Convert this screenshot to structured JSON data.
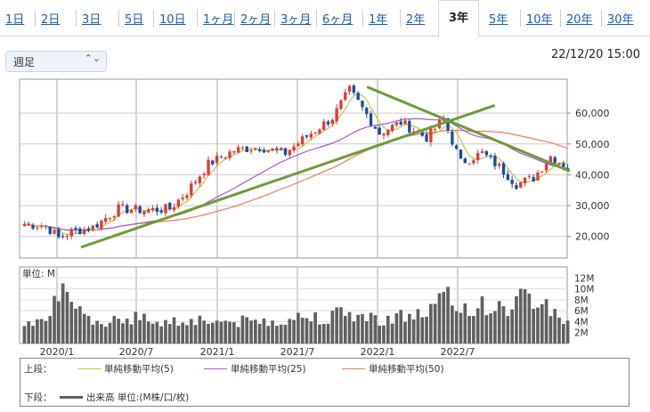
{
  "tabs": [
    "1日",
    "2日",
    "3日",
    "5日",
    "10日",
    "1ヶ月",
    "2ヶ月",
    "3ヶ月",
    "6ヶ月",
    "1年",
    "2年",
    "3年",
    "5年",
    "10年",
    "20年",
    "30年"
  ],
  "active_tab": "3年",
  "period_select": {
    "value": "週足"
  },
  "timestamp": "22/12/20 15:00",
  "colors": {
    "up": "#e23a3a",
    "down": "#1d4aa8",
    "ma5": "#b8cc3c",
    "ma25": "#a65ad6",
    "ma50": "#ee7a5e",
    "trend": "#6f9a3a",
    "volume": "#606060"
  },
  "chart_data": {
    "type": "candlestick",
    "x_ticks": [
      "2020/1",
      "2020/7",
      "2021/1",
      "2021/7",
      "2022/1",
      "2022/7"
    ],
    "y_ticks": [
      "20,000",
      "30,000",
      "40,000",
      "50,000",
      "60,000"
    ],
    "ylim": [
      13000,
      71000
    ],
    "volume_unit_label": "単位: M",
    "volume_ticks": [
      "2M",
      "4M",
      "6M",
      "8M",
      "10M",
      "12M"
    ],
    "volume_ylim": [
      0,
      14
    ],
    "anchors": [
      [
        0,
        24000
      ],
      [
        5,
        23500
      ],
      [
        8,
        19500
      ],
      [
        11,
        21500
      ],
      [
        16,
        23000
      ],
      [
        22,
        29000
      ],
      [
        28,
        28500
      ],
      [
        34,
        29000
      ],
      [
        38,
        34500
      ],
      [
        43,
        43500
      ],
      [
        49,
        48000
      ],
      [
        55,
        49000
      ],
      [
        61,
        47000
      ],
      [
        66,
        52500
      ],
      [
        72,
        58500
      ],
      [
        76,
        67500
      ],
      [
        79,
        61500
      ],
      [
        83,
        53500
      ],
      [
        88,
        57000
      ],
      [
        94,
        52000
      ],
      [
        98,
        58000
      ],
      [
        102,
        44000
      ],
      [
        107,
        47000
      ],
      [
        111,
        42500
      ],
      [
        115,
        37000
      ],
      [
        119,
        39000
      ],
      [
        123,
        46000
      ],
      [
        127,
        42500
      ]
    ],
    "volume_profile": [
      [
        0,
        4.0
      ],
      [
        5,
        5.5
      ],
      [
        8,
        10.0
      ],
      [
        11,
        6.5
      ],
      [
        16,
        3.5
      ],
      [
        22,
        5.0
      ],
      [
        28,
        4.5
      ],
      [
        34,
        4.0
      ],
      [
        40,
        4.5
      ],
      [
        46,
        4.0
      ],
      [
        52,
        4.0
      ],
      [
        58,
        4.2
      ],
      [
        64,
        4.8
      ],
      [
        70,
        5.0
      ],
      [
        76,
        5.5
      ],
      [
        82,
        4.5
      ],
      [
        88,
        5.0
      ],
      [
        94,
        5.5
      ],
      [
        98,
        8.5
      ],
      [
        102,
        6.5
      ],
      [
        108,
        7.0
      ],
      [
        112,
        6.0
      ],
      [
        116,
        8.5
      ],
      [
        120,
        8.0
      ],
      [
        124,
        6.0
      ],
      [
        127,
        3.5
      ]
    ],
    "trendlines": [
      {
        "from": [
          "2020/1",
          16500
        ],
        "to": [
          "2022/9",
          62500
        ]
      },
      {
        "from": [
          "2021/12",
          68500
        ],
        "to": [
          "2023/1",
          43500
        ]
      }
    ],
    "legend": {
      "upper_label": "上段：",
      "lower_label": "下段：",
      "series": [
        {
          "name": "単純移動平均(5)",
          "color": "#b8cc3c"
        },
        {
          "name": "単純移動平均(25)",
          "color": "#a65ad6"
        },
        {
          "name": "単純移動平均(50)",
          "color": "#ee7a5e"
        }
      ],
      "volume": {
        "name": "出来高 単位:(M株/口/枚)",
        "color": "#606060"
      }
    }
  }
}
